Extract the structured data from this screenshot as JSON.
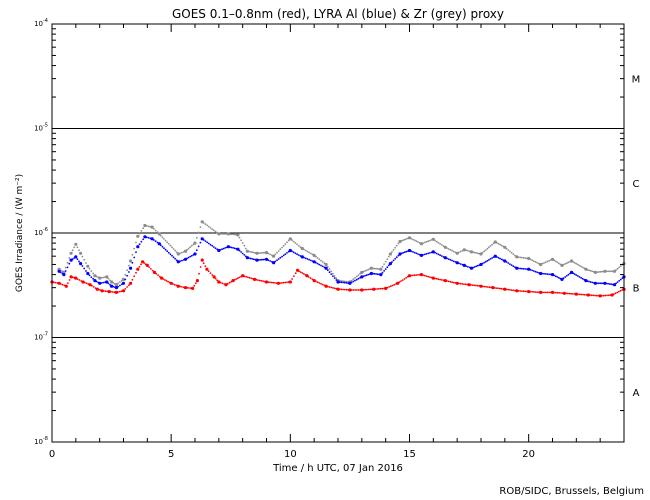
{
  "chart_data": {
    "type": "scatter",
    "title": "GOES 0.1–0.8nm (red), LYRA Al (blue) & Zr (grey) proxy",
    "xlabel": "Time / h UTC, 07 Jan 2016",
    "ylabel": "GOES Irradiance / (W m⁻²)",
    "credit": "ROB/SIDC, Brussels, Belgium",
    "xlim": [
      0,
      24
    ],
    "ylim": [
      1e-08,
      0.0001
    ],
    "yscale": "log",
    "xticks": [
      0,
      5,
      10,
      15,
      20
    ],
    "xtick_labels": [
      "0",
      "5",
      "10",
      "15",
      "20"
    ],
    "ytick_labels": [
      {
        "base": "10",
        "exp": "-8"
      },
      {
        "base": "10",
        "exp": "-7"
      },
      {
        "base": "10",
        "exp": "-6"
      },
      {
        "base": "10",
        "exp": "-5"
      },
      {
        "base": "10",
        "exp": "-4"
      }
    ],
    "flare_class_lines": [
      1e-07,
      1e-06,
      1e-05
    ],
    "flare_classes": [
      {
        "label": "A",
        "y": 3e-08
      },
      {
        "label": "B",
        "y": 3e-07
      },
      {
        "label": "C",
        "y": 3e-06
      },
      {
        "label": "M",
        "y": 3e-05
      }
    ],
    "grid": false,
    "legend": "none",
    "series": [
      {
        "color": "#ff0000",
        "x": [
          0.0,
          0.3,
          0.6,
          0.8,
          1.0,
          1.3,
          1.6,
          1.9,
          2.1,
          2.4,
          2.7,
          3.0,
          3.3,
          3.6,
          3.8,
          4.0,
          4.3,
          4.6,
          5.0,
          5.3,
          5.6,
          5.9,
          6.1,
          6.3,
          6.5,
          6.8,
          7.0,
          7.3,
          7.6,
          8.0,
          8.5,
          9.0,
          9.5,
          10.0,
          10.3,
          10.7,
          11.0,
          11.5,
          12.0,
          12.5,
          13.0,
          13.5,
          14.0,
          14.5,
          15.0,
          15.5,
          16.0,
          16.5,
          17.0,
          17.5,
          18.0,
          18.5,
          19.0,
          19.5,
          20.0,
          20.5,
          21.0,
          21.5,
          22.0,
          22.5,
          23.0,
          23.5,
          24.0
        ],
        "y": [
          3.4e-07,
          3.3e-07,
          3.1e-07,
          3.8e-07,
          3.7e-07,
          3.4e-07,
          3.2e-07,
          2.9e-07,
          2.8e-07,
          2.75e-07,
          2.7e-07,
          2.8e-07,
          3.3e-07,
          4.5e-07,
          5.3e-07,
          4.9e-07,
          4.2e-07,
          3.7e-07,
          3.3e-07,
          3.1e-07,
          3e-07,
          2.95e-07,
          3.5e-07,
          5.5e-07,
          4.5e-07,
          3.8e-07,
          3.4e-07,
          3.2e-07,
          3.5e-07,
          3.9e-07,
          3.6e-07,
          3.4e-07,
          3.3e-07,
          3.4e-07,
          4.4e-07,
          3.9e-07,
          3.5e-07,
          3.1e-07,
          2.9e-07,
          2.85e-07,
          2.85e-07,
          2.9e-07,
          2.95e-07,
          3.3e-07,
          3.9e-07,
          4e-07,
          3.7e-07,
          3.5e-07,
          3.3e-07,
          3.2e-07,
          3.1e-07,
          3e-07,
          2.9e-07,
          2.8e-07,
          2.75e-07,
          2.7e-07,
          2.7e-07,
          2.65e-07,
          2.6e-07,
          2.55e-07,
          2.5e-07,
          2.55e-07,
          2.9e-07
        ]
      },
      {
        "color": "#0000ff",
        "x": [
          0.3,
          0.5,
          0.8,
          1.0,
          1.2,
          1.5,
          1.8,
          2.0,
          2.3,
          2.5,
          2.7,
          3.0,
          3.3,
          3.6,
          3.9,
          4.2,
          4.5,
          5.3,
          5.6,
          6.0,
          6.3,
          7.0,
          7.4,
          7.8,
          8.2,
          8.6,
          9.0,
          9.3,
          10.0,
          10.5,
          11.0,
          11.5,
          12.0,
          12.5,
          13.0,
          13.4,
          13.8,
          14.2,
          14.6,
          15.0,
          15.5,
          16.0,
          16.5,
          17.0,
          17.3,
          17.6,
          18.0,
          18.6,
          19.0,
          19.5,
          20.0,
          20.5,
          21.0,
          21.4,
          21.8,
          22.4,
          22.8,
          23.2,
          23.6,
          24.0
        ],
        "y": [
          4.3e-07,
          4e-07,
          5.5e-07,
          5.9e-07,
          5.1e-07,
          4.1e-07,
          3.5e-07,
          3.3e-07,
          3.4e-07,
          3.1e-07,
          3e-07,
          3.3e-07,
          4.6e-07,
          7.4e-07,
          9.2e-07,
          8.8e-07,
          7.9e-07,
          5.3e-07,
          5.6e-07,
          6.3e-07,
          8.8e-07,
          6.8e-07,
          7.4e-07,
          7e-07,
          5.8e-07,
          5.5e-07,
          5.6e-07,
          5.2e-07,
          6.8e-07,
          5.9e-07,
          5.3e-07,
          4.6e-07,
          3.4e-07,
          3.3e-07,
          3.8e-07,
          4.1e-07,
          4e-07,
          5.1e-07,
          6.3e-07,
          6.8e-07,
          6.1e-07,
          6.6e-07,
          5.8e-07,
          5.2e-07,
          4.9e-07,
          4.6e-07,
          5e-07,
          6e-07,
          5.4e-07,
          4.6e-07,
          4.5e-07,
          4.1e-07,
          4e-07,
          3.6e-07,
          4.2e-07,
          3.5e-07,
          3.3e-07,
          3.3e-07,
          3.2e-07,
          3.8e-07
        ]
      },
      {
        "color": "#8c8c8c",
        "x": [
          0.3,
          0.5,
          0.8,
          1.0,
          1.2,
          1.5,
          1.8,
          2.0,
          2.3,
          2.5,
          2.7,
          3.0,
          3.3,
          3.6,
          3.9,
          4.2,
          4.5,
          5.3,
          5.6,
          6.0,
          6.3,
          7.0,
          7.4,
          7.8,
          8.2,
          8.6,
          9.0,
          9.3,
          10.0,
          10.5,
          11.0,
          11.5,
          12.0,
          12.5,
          13.0,
          13.4,
          13.8,
          14.2,
          14.6,
          15.0,
          15.5,
          16.0,
          16.5,
          17.0,
          17.3,
          17.6,
          18.0,
          18.6,
          19.0,
          19.5,
          20.0,
          20.5,
          21.0,
          21.4,
          21.8,
          22.4,
          22.8,
          23.2,
          23.6,
          24.0
        ],
        "y": [
          4.5e-07,
          4.2e-07,
          6.4e-07,
          7.8e-07,
          6.4e-07,
          4.8e-07,
          3.9e-07,
          3.7e-07,
          3.8e-07,
          3.4e-07,
          3.2e-07,
          3.6e-07,
          5.4e-07,
          9.3e-07,
          1.18e-06,
          1.14e-06,
          9.8e-07,
          6.3e-07,
          6.7e-07,
          8e-07,
          1.28e-06,
          9.8e-07,
          9.8e-07,
          9.6e-07,
          6.7e-07,
          6.4e-07,
          6.5e-07,
          6e-07,
          8.8e-07,
          7.1e-07,
          6.1e-07,
          5e-07,
          3.5e-07,
          3.4e-07,
          4.2e-07,
          4.6e-07,
          4.5e-07,
          6.3e-07,
          8.3e-07,
          9e-07,
          7.9e-07,
          8.7e-07,
          7.3e-07,
          6.4e-07,
          6.9e-07,
          6.6e-07,
          6.3e-07,
          8.2e-07,
          7.3e-07,
          5.9e-07,
          5.7e-07,
          5e-07,
          5.6e-07,
          4.9e-07,
          5.4e-07,
          4.5e-07,
          4.2e-07,
          4.3e-07,
          4.3e-07,
          5.1e-07
        ]
      }
    ]
  }
}
